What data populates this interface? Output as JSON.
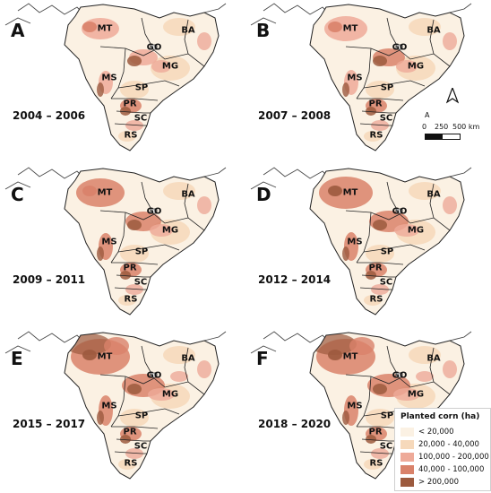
{
  "panels": [
    {
      "letter": "A",
      "years": "2004 – 2006",
      "intensity": 1
    },
    {
      "letter": "B",
      "years": "2007 – 2008",
      "intensity": 2
    },
    {
      "letter": "C",
      "years": "2009 – 2011",
      "intensity": 3
    },
    {
      "letter": "D",
      "years": "2012 – 2014",
      "intensity": 4
    },
    {
      "letter": "E",
      "years": "2015 – 2017",
      "intensity": 5
    },
    {
      "letter": "F",
      "years": "2018 – 2020",
      "intensity": 5
    }
  ],
  "states": [
    "MT",
    "GO",
    "BA",
    "MG",
    "MS",
    "SP",
    "PR",
    "SC",
    "RS"
  ],
  "north_arrow": "A",
  "scale": {
    "zero": "0",
    "mid": "250",
    "end": "500 km"
  },
  "legend": {
    "title": "Planted corn (ha)",
    "items": [
      {
        "label": "< 20,000",
        "color": "#fbf1e3"
      },
      {
        "label": "20,000 - 40,000",
        "color": "#f6d9bb"
      },
      {
        "label": "100,000 - 200,000",
        "color": "#eeaa99"
      },
      {
        "label": "40,000 - 100,000",
        "color": "#d9826a"
      },
      {
        "label": "> 200,000",
        "color": "#9c5a3e"
      }
    ]
  },
  "colors": {
    "base": "#fbf1e3",
    "low": "#f6d9bb",
    "mid": "#eeaa99",
    "high": "#d9826a",
    "top": "#9c5a3e",
    "border": "#222222",
    "country": "#444444"
  }
}
